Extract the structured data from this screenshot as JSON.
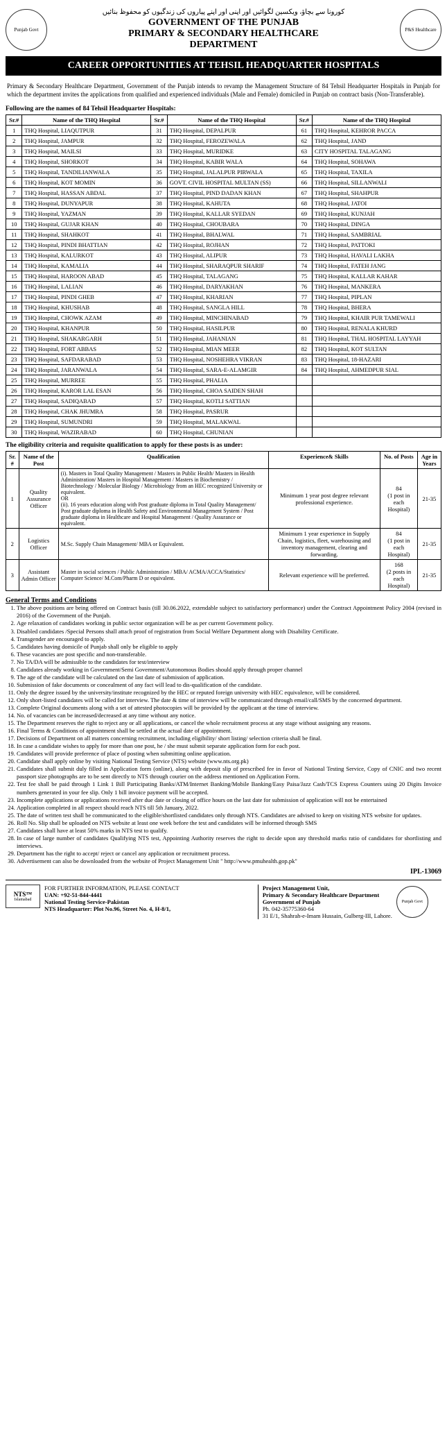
{
  "header": {
    "urdu": "کورونا سے بچاؤ، ویکسین لگوائیں اور اپنی اور اپنے پیاروں کی زندگیوں کو محفوظ بنائیں",
    "gov": "GOVERNMENT OF THE PUNJAB",
    "dept1": "PRIMARY & SECONDARY HEALTHCARE",
    "dept2": "DEPARTMENT",
    "logo_left": "Punjab Govt",
    "logo_right": "P&S Healthcare"
  },
  "banner": "CAREER OPPORTUNITIES AT TEHSIL HEADQUARTER HOSPITALS",
  "intro": "Primary & Secondary Healthcare Department, Government of the Punjab intends to revamp the Management Structure of 84 Tehsil Headquarter Hospitals in Punjab for which the department invites the applications from qualified and experienced individuals (Male and Female) domiciled in Punjab on contract basis (Non-Transferable).",
  "subhead_hosp": "Following are the names of 84 Tehsil Headquarter Hospitals:",
  "hosp_headers": [
    "Sr.#",
    "Name of the THQ Hospital",
    "Sr.#",
    "Name of the THQ Hospital",
    "Sr.#",
    "Name of the THQ Hospital"
  ],
  "hospitals": [
    [
      "1",
      "THQ Hospital, LIAQUTPUR",
      "31",
      "THQ Hospital, DEPALPUR",
      "61",
      "THQ Hospital, KEHROR PACCA"
    ],
    [
      "2",
      "THQ Hospital, JAMPUR",
      "32",
      "THQ Hospital, FEROZEWALA",
      "62",
      "THQ Hospital, JAND"
    ],
    [
      "3",
      "THQ Hospital, MAILSI",
      "33",
      "THQ Hospital, MURIDKE",
      "63",
      "CITY HOSPITAL TALAGANG"
    ],
    [
      "4",
      "THQ Hospital, SHORKOT",
      "34",
      "THQ Hospital, KABIR WALA",
      "64",
      "THQ Hospital, SOHAWA"
    ],
    [
      "5",
      "THQ Hospital, TANDILIANWALA",
      "35",
      "THQ Hospital, JALALPUR PIRWALA",
      "65",
      "THQ Hospital, TAXILA"
    ],
    [
      "6",
      "THQ Hospital, KOT MOMIN",
      "36",
      "GOVT. CIVIL HOSPITAL MULTAN (SS)",
      "66",
      "THQ Hospital, SILLANWALI"
    ],
    [
      "7",
      "THQ Hospital, HASSAN ABDAL",
      "37",
      "THQ Hospital, PIND DADAN KHAN",
      "67",
      "THQ Hospital, SHAHPUR"
    ],
    [
      "8",
      "THQ Hospital, DUNYAPUR",
      "38",
      "THQ Hospital, KAHUTA",
      "68",
      "THQ Hospital, JATOI"
    ],
    [
      "9",
      "THQ Hospital, YAZMAN",
      "39",
      "THQ Hospital, KALLAR SYEDAN",
      "69",
      "THQ Hospital, KUNJAH"
    ],
    [
      "10",
      "THQ Hospital, GUJAR KHAN",
      "40",
      "THQ Hospital, CHOUBARA",
      "70",
      "THQ Hospital, DINGA"
    ],
    [
      "11",
      "THQ Hospital, SHAHKOT",
      "41",
      "THQ Hospital, BHALWAL",
      "71",
      "THQ Hospital, SAMBRIAL"
    ],
    [
      "12",
      "THQ Hospital, PINDI BHATTIAN",
      "42",
      "THQ Hospital, ROJHAN",
      "72",
      "THQ Hospital, PATTOKI"
    ],
    [
      "13",
      "THQ Hospital, KALURKOT",
      "43",
      "THQ Hospital, ALIPUR",
      "73",
      "THQ Hospital, HAVALI LAKHA"
    ],
    [
      "14",
      "THQ Hospital, KAMALIA",
      "44",
      "THQ Hospital, SHARAQPUR SHARIF",
      "74",
      "THQ Hospital, FATEH JANG"
    ],
    [
      "15",
      "THQ Hospital, HAROON ABAD",
      "45",
      "THQ Hospital, TALAGANG",
      "75",
      "THQ Hospital, KALLAR KAHAR"
    ],
    [
      "16",
      "THQ Hospital, LALIAN",
      "46",
      "THQ Hospital, DARYAKHAN",
      "76",
      "THQ Hospital, MANKERA"
    ],
    [
      "17",
      "THQ Hospital, PINDI GHEB",
      "47",
      "THQ Hospital, KHARIAN",
      "77",
      "THQ Hospital, PIPLAN"
    ],
    [
      "18",
      "THQ Hospital, KHUSHAB",
      "48",
      "THQ Hospital, SANGLA HILL",
      "78",
      "THQ Hospital, BHERA"
    ],
    [
      "19",
      "THQ Hospital, CHOWK AZAM",
      "49",
      "THQ Hospital, MINCHINABAD",
      "79",
      "THQ Hospital, KHAIR PUR TAMEWALI"
    ],
    [
      "20",
      "THQ Hospital, KHANPUR",
      "50",
      "THQ Hospital, HASILPUR",
      "80",
      "THQ Hospital, RENALA KHURD"
    ],
    [
      "21",
      "THQ Hospital, SHAKARGARH",
      "51",
      "THQ Hospital, JAHANIAN",
      "81",
      "THQ Hospital, THAL HOSPITAL LAYYAH"
    ],
    [
      "22",
      "THQ Hospital, FORT ABBAS",
      "52",
      "THQ Hospital, MIAN MEER",
      "82",
      "THQ Hospital, KOT SULTAN"
    ],
    [
      "23",
      "THQ Hospital, SAFDARABAD",
      "53",
      "THQ Hospital, NOSHEHRA VIKRAN",
      "83",
      "THQ Hospital, 18-HAZARI"
    ],
    [
      "24",
      "THQ Hospital, JARANWALA",
      "54",
      "THQ Hospital, SARA-E-ALAMGIR",
      "84",
      "THQ Hospital, AHMEDPUR SIAL"
    ],
    [
      "25",
      "THQ Hospital, MURREE",
      "55",
      "THQ Hospital, PHALIA",
      "",
      ""
    ],
    [
      "26",
      "THQ Hospital, KAROR LAL ESAN",
      "56",
      "THQ Hospital, CHOA SAIDEN SHAH",
      "",
      ""
    ],
    [
      "27",
      "THQ Hospital, SADIQABAD",
      "57",
      "THQ Hospital, KOTLI SATTIAN",
      "",
      ""
    ],
    [
      "28",
      "THQ Hospital, CHAK JHUMRA",
      "58",
      "THQ Hospital, PASRUR",
      "",
      ""
    ],
    [
      "29",
      "THQ Hospital, SUMUNDRI",
      "59",
      "THQ Hospital, MALAKWAL",
      "",
      ""
    ],
    [
      "30",
      "THQ Hospital, WAZIRABAD",
      "60",
      "THQ Hospital, CHUNIAN",
      "",
      ""
    ]
  ],
  "subhead_posts": "The eligibility criteria and requisite qualification to apply for these posts is as under:",
  "post_headers": [
    "Sr. #",
    "Name of the Post",
    "Qualification",
    "Experience& Skills",
    "No. of Posts",
    "Age in Years"
  ],
  "posts": [
    {
      "sr": "1",
      "name": "Quality Assurance Officer",
      "qual": "(i). Masters in Total Quality Management / Masters in Public Health/ Masters in Health Administration/ Masters in Hospital Management / Masters in Biochemistry / Biotechnology / Molecular Biology / Microbiology from an HEC recognized University or equivalent.\nOR\n(ii). 16 years education along with Post graduate diploma in Total Quality Management/ Post graduate diploma in Health Safety and Environmental Management System / Post graduate diploma in Healthcare and Hospital Management / Quality Assurance or equivalent.",
      "exp": "Minimum 1 year post degree relevant professional experience.",
      "num": "84\n(1 post in each Hospital)",
      "age": "21-35"
    },
    {
      "sr": "2",
      "name": "Logistics Officer",
      "qual": "M.Sc. Supply Chain Management/ MBA or Equivalent.",
      "exp": "Minimum 1 year experience in Supply Chain, logistics, fleet, warehousing and inventory management, clearing and forwarding.",
      "num": "84\n(1 post in each Hospital)",
      "age": "21-35"
    },
    {
      "sr": "3",
      "name": "Assistant Admin Officer",
      "qual": "Master in social sciences / Public Administration / MBA/ ACMA/ACCA/Statistics/ Computer Science/ M.Com/Pharm D or equivalent.",
      "exp": "Relevant experience will be preferred.",
      "num": "168\n(2 posts in each Hospital)",
      "age": "21-35"
    }
  ],
  "terms_head": "General Terms and Conditions",
  "terms": [
    "The above positions are being offered on Contract basis (till 30.06.2022, extendable subject to satisfactory performance) under the Contract Appointment Policy 2004 (revised in 2016) of the Government of the Punjab.",
    "Age relaxation of candidates working in public sector organization will be as per current Government policy.",
    "Disabled candidates /Special Persons shall attach proof of registration from Social Welfare Department along with Disability Certificate.",
    "Transgender are encouraged to apply.",
    "Candidates having domicile of Punjab shall only be eligible to apply",
    "These vacancies are post specific and non-transferable.",
    "No TA/DA will be admissible to the candidates for test/interview",
    "Candidates already working in Government/Semi Government/Autonomous Bodies should apply through proper channel",
    "The age of the candidate will be calculated on the last date of submission of application.",
    "Submission of fake documents or concealment of any fact will lead to dis-qualification of the candidate.",
    "Only the degree issued by the university/institute recognized by the HEC or reputed foreign university with HEC equivalence, will be considered.",
    "Only short-listed candidates will be called for interview. The date & time of interview will be communicated through email/call/SMS by the concerned department.",
    "Complete Original documents along with a set of attested photocopies will be provided by the applicant at the time of interview.",
    "No. of vacancies can be increased/decreased at any time without any notice.",
    "The Department reserves the right to reject any or all applications, or cancel the whole recruitment process at any stage without assigning any reasons.",
    "Final Terms & Conditions of appointment shall be settled at the actual date of appointment.",
    "Decisions of Department on all matters concerning recruitment, including eligibility/ short listing/ selection criteria shall be final.",
    "In case a candidate wishes to apply for more than one post, he / she must submit separate application form for each post.",
    "Candidates will provide preference of place of posting when submitting online application.",
    "Candidate shall apply online by visiting National Testing Service (NTS) website (www.nts.org.pk)",
    "Candidates shall submit duly filled in Application form (online), along with deposit slip of prescribed fee in favor of National Testing Service, Copy of CNIC and two recent passport size photographs are to be sent directly to NTS through courier on the address mentioned on Application Form.",
    "Test fee shall be paid through 1 Link 1 Bill Participating Banks/ATM/Internet Banking/Mobile Banking/Easy Paisa/Jazz Cash/TCS Express Counters using 20 Digits Invoice numbers generated in your fee slip. Only 1 bill invoice payment will be accepted.",
    "Incomplete applications or applications received after due date or closing of office hours on the last date for submission of application will not be entertained",
    "Application completed in all respect should reach NTS till 5th January, 2022.",
    "The date of written test shall be communicated to the eligible/shortlisted candidates only through NTS. Candidates are advised to keep on visiting NTS website for updates.",
    "Roll No. Slip shall be uploaded on NTS website at least one week before the test and candidates will be informed through SMS",
    "Candidates shall have at least 50% marks in NTS test to qualify.",
    "In case of large number of candidates Qualifying NTS test, Appointing Authority reserves the right to decide upon any threshold marks ratio of candidates for shortlisting and interviews.",
    "Department has the right to accept/ reject or cancel any application or recruitment process.",
    "Advertisement can also be downloaded from the website of Project Management Unit \" http://www.pmuhealth.gop.pk\""
  ],
  "ipl": "IPL-13069",
  "footer": {
    "nts_label": "NTS™",
    "nts_sub": "Islamabad",
    "left_head": "FOR FURTHER INFORMATION, PLEASE CONTACT",
    "uan": "UAN: +92-51-844-4441",
    "nts_name": "National Testing Service-Pakistan",
    "nts_addr": "NTS Headquarter: Plot No.96, Street No. 4, H-8/1,",
    "right_head": "Project Management Unit,",
    "right_dept": "Primary & Secondary Healthcare Department",
    "right_gov": "Government of Punjab",
    "right_ph": "Ph. 042-35775360-64",
    "right_addr": "31 E/1, Shahrah-e-Imam Hussain, Gulberg-III, Lahore.",
    "seal": "Punjab Govt"
  }
}
